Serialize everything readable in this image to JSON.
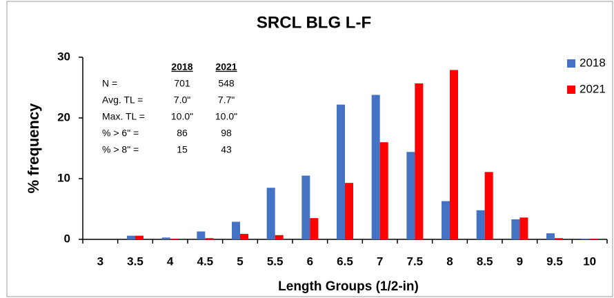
{
  "chart_data": {
    "type": "bar",
    "title": "SRCL BLG L-F",
    "xlabel": "Length Groups (1/2-in)",
    "ylabel": "% frequency",
    "categories": [
      "3",
      "3.5",
      "4",
      "4.5",
      "5",
      "5.5",
      "6",
      "6.5",
      "7",
      "7.5",
      "8",
      "8.5",
      "9",
      "9.5",
      "10"
    ],
    "series": [
      {
        "name": "2018",
        "color": "#4472c4",
        "values": [
          0,
          0.6,
          0.3,
          1.3,
          2.9,
          8.5,
          10.5,
          22.2,
          23.8,
          14.4,
          6.3,
          4.8,
          3.3,
          1.0,
          0.1
        ]
      },
      {
        "name": "2021",
        "color": "#ff0000",
        "values": [
          0,
          0.6,
          0.1,
          0.2,
          0.9,
          0.7,
          3.5,
          9.3,
          16.0,
          25.7,
          27.9,
          11.1,
          3.6,
          0.2,
          0.1
        ]
      }
    ],
    "ylim": [
      0,
      30
    ],
    "yticks": [
      0,
      10,
      20,
      30
    ],
    "legend": "right",
    "stats": {
      "columns": [
        "2018",
        "2021"
      ],
      "rows": [
        {
          "label": "N =",
          "values": [
            "701",
            "548"
          ]
        },
        {
          "label": "Avg. TL =",
          "values": [
            "7.0\"",
            "7.7\""
          ]
        },
        {
          "label": "Max. TL =",
          "values": [
            "10.0\"",
            "10.0\""
          ]
        },
        {
          "label": "% > 6\" =",
          "values": [
            "86",
            "98"
          ]
        },
        {
          "label": "% > 8\" =",
          "values": [
            "15",
            "43"
          ]
        }
      ]
    }
  }
}
